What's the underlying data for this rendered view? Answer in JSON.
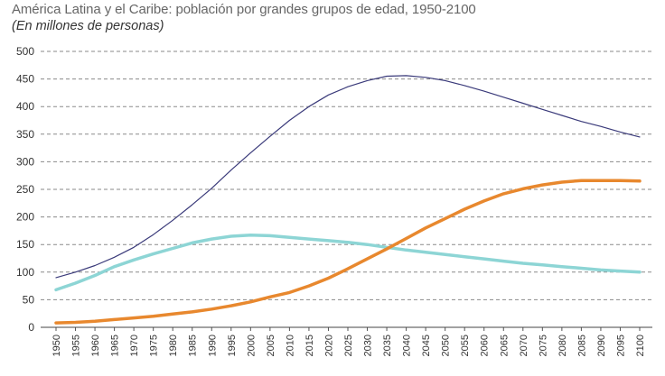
{
  "title": "América Latina y el Caribe: población por grandes grupos de edad, 1950-2100",
  "subtitle": "(En millones de personas)",
  "chart_data": {
    "type": "line",
    "title": "América Latina y el Caribe: población por grandes grupos de edad, 1950-2100",
    "subtitle": "(En millones de personas)",
    "xlabel": "",
    "ylabel": "",
    "ylim": [
      0,
      500
    ],
    "yticks": [
      0,
      50,
      100,
      150,
      200,
      250,
      300,
      350,
      400,
      450,
      500
    ],
    "grid": "horizontal dashed",
    "x": [
      1950,
      1955,
      1960,
      1965,
      1970,
      1975,
      1980,
      1985,
      1990,
      1995,
      2000,
      2005,
      2010,
      2015,
      2020,
      2025,
      2030,
      2035,
      2040,
      2045,
      2050,
      2055,
      2060,
      2065,
      2070,
      2075,
      2080,
      2085,
      2090,
      2095,
      2100
    ],
    "series": [
      {
        "color": "#3a3a7a",
        "values": [
          90,
          100,
          112,
          127,
          145,
          168,
          194,
          222,
          252,
          285,
          316,
          346,
          375,
          400,
          421,
          436,
          447,
          455,
          456,
          453,
          447,
          438,
          428,
          417,
          406,
          395,
          384,
          373,
          364,
          354,
          345
        ]
      },
      {
        "color": "#8dd5d5",
        "values": [
          68,
          80,
          94,
          110,
          122,
          133,
          143,
          153,
          160,
          165,
          167,
          166,
          163,
          160,
          157,
          154,
          150,
          145,
          140,
          136,
          132,
          128,
          124,
          120,
          116,
          113,
          110,
          107,
          104,
          102,
          100
        ]
      },
      {
        "color": "#e8882e",
        "values": [
          8,
          9,
          11,
          14,
          17,
          20,
          24,
          28,
          33,
          39,
          46,
          55,
          63,
          75,
          89,
          106,
          124,
          142,
          161,
          180,
          197,
          214,
          229,
          242,
          251,
          258,
          263,
          266,
          266,
          266,
          265
        ]
      }
    ]
  }
}
